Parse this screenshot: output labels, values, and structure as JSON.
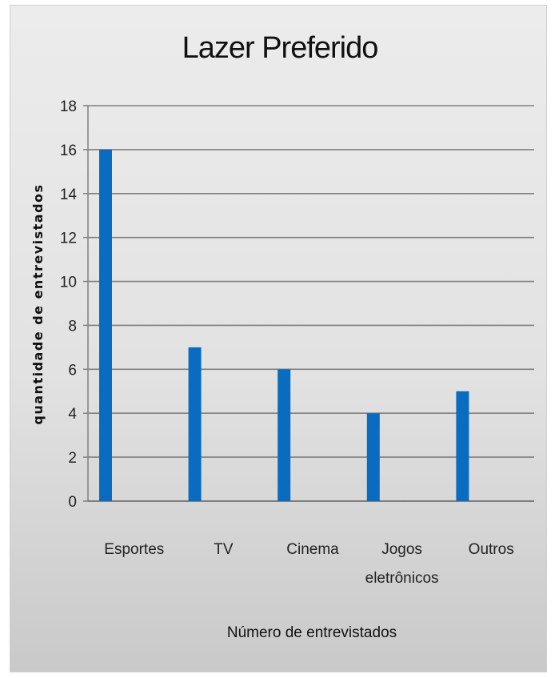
{
  "chart_data": {
    "type": "bar",
    "title": "Lazer Preferido",
    "xlabel": "Número de entrevistados",
    "ylabel": "quantidade  de entrevistados",
    "categories": [
      [
        "Esportes"
      ],
      [
        "TV"
      ],
      [
        "Cinema"
      ],
      [
        "Jogos",
        "eletrônicos"
      ],
      [
        "Outros"
      ]
    ],
    "values": [
      16,
      7,
      6,
      4,
      5
    ],
    "ylim": [
      0,
      18
    ],
    "yticks": [
      0,
      2,
      4,
      6,
      8,
      10,
      12,
      14,
      16,
      18
    ],
    "grid": true,
    "legend": "none",
    "colors": {
      "bar": "#0a6cc0",
      "grid": "#7f7f7f",
      "axis": "#808080"
    }
  }
}
